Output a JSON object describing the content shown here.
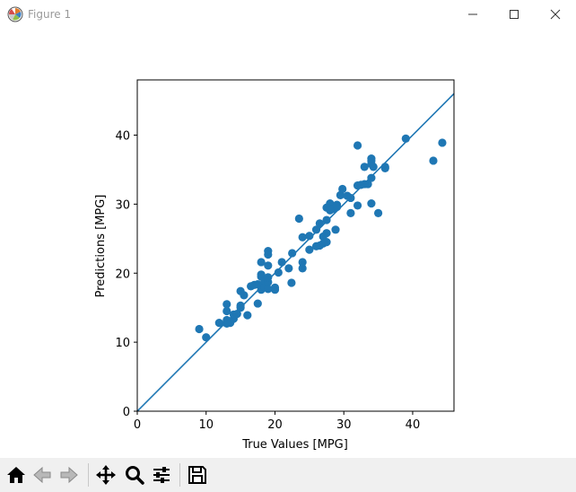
{
  "window": {
    "title": "Figure 1",
    "controls": [
      "minimize",
      "maximize",
      "close"
    ]
  },
  "toolbar": {
    "buttons": [
      "home-icon",
      "back-icon",
      "forward-icon",
      "pan-icon",
      "zoom-icon",
      "configure-subplots-icon",
      "save-icon"
    ]
  },
  "chart_data": {
    "type": "scatter",
    "xlabel": "True Values [MPG]",
    "ylabel": "Predictions [MPG]",
    "xlim": [
      0,
      46
    ],
    "ylim": [
      0,
      48
    ],
    "xticks": [
      0,
      10,
      20,
      30,
      40
    ],
    "yticks": [
      0,
      10,
      20,
      30,
      40
    ],
    "color": "#1f77b4",
    "reference_line": {
      "x": [
        0,
        46
      ],
      "y": [
        0,
        46
      ]
    },
    "points": [
      [
        9.0,
        11.9
      ],
      [
        10.0,
        10.7
      ],
      [
        11.9,
        12.8
      ],
      [
        13.0,
        12.7
      ],
      [
        13.0,
        13.2
      ],
      [
        13.0,
        14.5
      ],
      [
        13.0,
        15.5
      ],
      [
        13.5,
        12.8
      ],
      [
        14.0,
        13.4
      ],
      [
        14.0,
        14.0
      ],
      [
        14.5,
        14.1
      ],
      [
        15.0,
        15.0
      ],
      [
        15.0,
        15.3
      ],
      [
        15.0,
        17.4
      ],
      [
        15.5,
        16.8
      ],
      [
        16.0,
        13.9
      ],
      [
        16.5,
        18.1
      ],
      [
        17.0,
        18.3
      ],
      [
        17.5,
        15.6
      ],
      [
        17.5,
        18.4
      ],
      [
        18.0,
        17.6
      ],
      [
        18.0,
        18.0
      ],
      [
        18.0,
        19.5
      ],
      [
        18.0,
        19.8
      ],
      [
        18.0,
        21.6
      ],
      [
        18.5,
        18.0
      ],
      [
        18.5,
        18.9
      ],
      [
        19.0,
        17.7
      ],
      [
        19.0,
        18.7
      ],
      [
        19.0,
        19.4
      ],
      [
        19.0,
        21.1
      ],
      [
        19.0,
        22.7
      ],
      [
        19.0,
        23.2
      ],
      [
        20.0,
        17.6
      ],
      [
        20.0,
        17.9
      ],
      [
        20.5,
        20.1
      ],
      [
        21.0,
        21.6
      ],
      [
        22.0,
        20.7
      ],
      [
        22.4,
        18.6
      ],
      [
        22.5,
        22.9
      ],
      [
        23.5,
        27.9
      ],
      [
        24.0,
        20.7
      ],
      [
        24.0,
        21.6
      ],
      [
        24.0,
        25.2
      ],
      [
        25.0,
        23.4
      ],
      [
        25.0,
        25.4
      ],
      [
        26.0,
        23.9
      ],
      [
        26.0,
        26.3
      ],
      [
        26.5,
        24.0
      ],
      [
        26.5,
        27.2
      ],
      [
        27.0,
        24.3
      ],
      [
        27.0,
        25.3
      ],
      [
        27.5,
        24.5
      ],
      [
        27.5,
        25.8
      ],
      [
        27.5,
        27.7
      ],
      [
        27.5,
        29.5
      ],
      [
        28.0,
        30.1
      ],
      [
        28.0,
        29.1
      ],
      [
        28.4,
        29.3
      ],
      [
        28.8,
        26.3
      ],
      [
        29.0,
        29.6
      ],
      [
        29.0,
        29.9
      ],
      [
        29.5,
        31.3
      ],
      [
        29.8,
        32.2
      ],
      [
        30.5,
        31.2
      ],
      [
        31.0,
        28.7
      ],
      [
        31.0,
        30.9
      ],
      [
        32.0,
        38.5
      ],
      [
        32.0,
        29.8
      ],
      [
        32.0,
        32.7
      ],
      [
        32.5,
        32.8
      ],
      [
        33.0,
        32.9
      ],
      [
        33.0,
        35.4
      ],
      [
        33.5,
        32.9
      ],
      [
        34.0,
        30.1
      ],
      [
        34.0,
        33.8
      ],
      [
        34.0,
        35.8
      ],
      [
        34.0,
        36.3
      ],
      [
        34.0,
        36.6
      ],
      [
        34.3,
        35.4
      ],
      [
        35.0,
        28.7
      ],
      [
        36.0,
        35.2
      ],
      [
        36.0,
        35.4
      ],
      [
        39.0,
        39.5
      ],
      [
        43.0,
        36.3
      ],
      [
        44.3,
        38.9
      ]
    ]
  }
}
